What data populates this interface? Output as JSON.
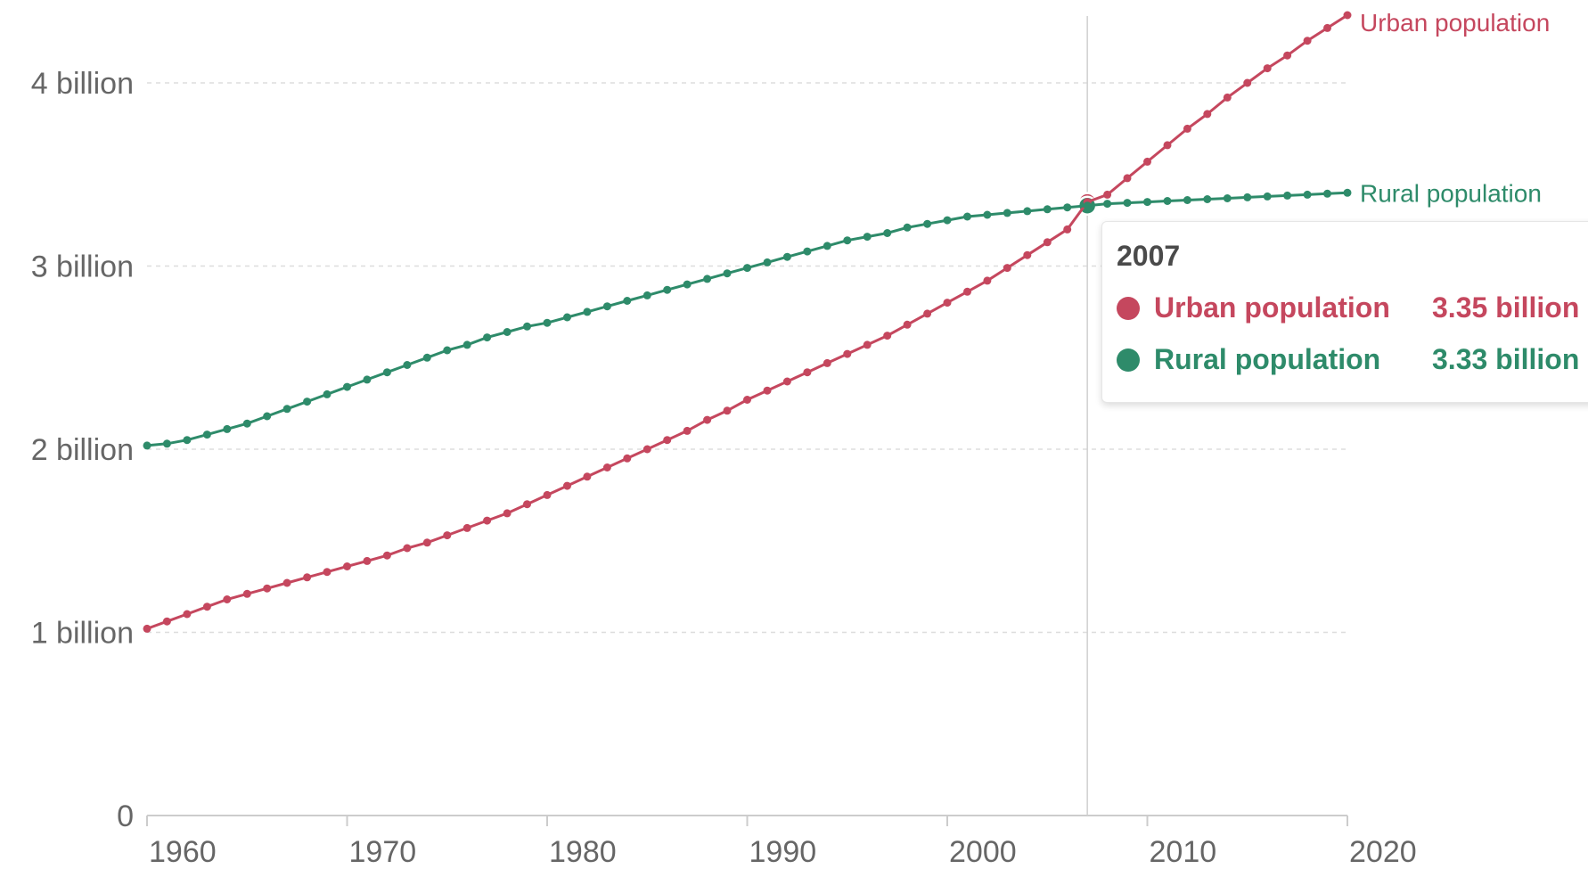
{
  "colors": {
    "urban": "#c5475e",
    "rural": "#2e8b6a",
    "grid": "#dddddd",
    "axis": "#cccccc",
    "tick_text": "#666666",
    "tooltip_title": "#4a4a4a"
  },
  "tooltip": {
    "title": "2007",
    "rows": [
      {
        "name": "Urban population",
        "value": "3.35 billion"
      },
      {
        "name": "Rural population",
        "value": "3.33 billion"
      }
    ]
  },
  "chart_data": {
    "type": "line",
    "title": "",
    "xlabel": "",
    "ylabel": "",
    "xlim": [
      1960,
      2020
    ],
    "ylim": [
      0,
      4.4
    ],
    "y_unit": "billion",
    "grid": true,
    "legend": "inline labels at line ends",
    "hover_x": 2007,
    "x_ticks": [
      1960,
      1970,
      1980,
      1990,
      2000,
      2010,
      2020
    ],
    "y_ticks": [
      {
        "value": 0,
        "label": "0"
      },
      {
        "value": 1,
        "label": "1 billion"
      },
      {
        "value": 2,
        "label": "2 billion"
      },
      {
        "value": 3,
        "label": "3 billion"
      },
      {
        "value": 4,
        "label": "4 billion"
      }
    ],
    "x": [
      1960,
      1961,
      1962,
      1963,
      1964,
      1965,
      1966,
      1967,
      1968,
      1969,
      1970,
      1971,
      1972,
      1973,
      1974,
      1975,
      1976,
      1977,
      1978,
      1979,
      1980,
      1981,
      1982,
      1983,
      1984,
      1985,
      1986,
      1987,
      1988,
      1989,
      1990,
      1991,
      1992,
      1993,
      1994,
      1995,
      1996,
      1997,
      1998,
      1999,
      2000,
      2001,
      2002,
      2003,
      2004,
      2005,
      2006,
      2007,
      2008,
      2009,
      2010,
      2011,
      2012,
      2013,
      2014,
      2015,
      2016,
      2017,
      2018,
      2019,
      2020
    ],
    "series": [
      {
        "name": "Urban population",
        "values": [
          1.02,
          1.06,
          1.1,
          1.14,
          1.18,
          1.21,
          1.24,
          1.27,
          1.3,
          1.33,
          1.36,
          1.39,
          1.42,
          1.46,
          1.49,
          1.53,
          1.57,
          1.61,
          1.65,
          1.7,
          1.75,
          1.8,
          1.85,
          1.9,
          1.95,
          2.0,
          2.05,
          2.1,
          2.16,
          2.21,
          2.27,
          2.32,
          2.37,
          2.42,
          2.47,
          2.52,
          2.57,
          2.62,
          2.68,
          2.74,
          2.8,
          2.86,
          2.92,
          2.99,
          3.06,
          3.13,
          3.2,
          3.35,
          3.39,
          3.48,
          3.57,
          3.66,
          3.75,
          3.83,
          3.92,
          4.0,
          4.08,
          4.15,
          4.23,
          4.3,
          4.37
        ]
      },
      {
        "name": "Rural population",
        "values": [
          2.02,
          2.03,
          2.05,
          2.08,
          2.11,
          2.14,
          2.18,
          2.22,
          2.26,
          2.3,
          2.34,
          2.38,
          2.42,
          2.46,
          2.5,
          2.54,
          2.57,
          2.61,
          2.64,
          2.67,
          2.69,
          2.72,
          2.75,
          2.78,
          2.81,
          2.84,
          2.87,
          2.9,
          2.93,
          2.96,
          2.99,
          3.02,
          3.05,
          3.08,
          3.11,
          3.14,
          3.16,
          3.18,
          3.21,
          3.23,
          3.25,
          3.27,
          3.28,
          3.29,
          3.3,
          3.31,
          3.32,
          3.33,
          3.34,
          3.345,
          3.35,
          3.355,
          3.36,
          3.365,
          3.37,
          3.375,
          3.38,
          3.385,
          3.39,
          3.395,
          3.4
        ]
      }
    ]
  }
}
